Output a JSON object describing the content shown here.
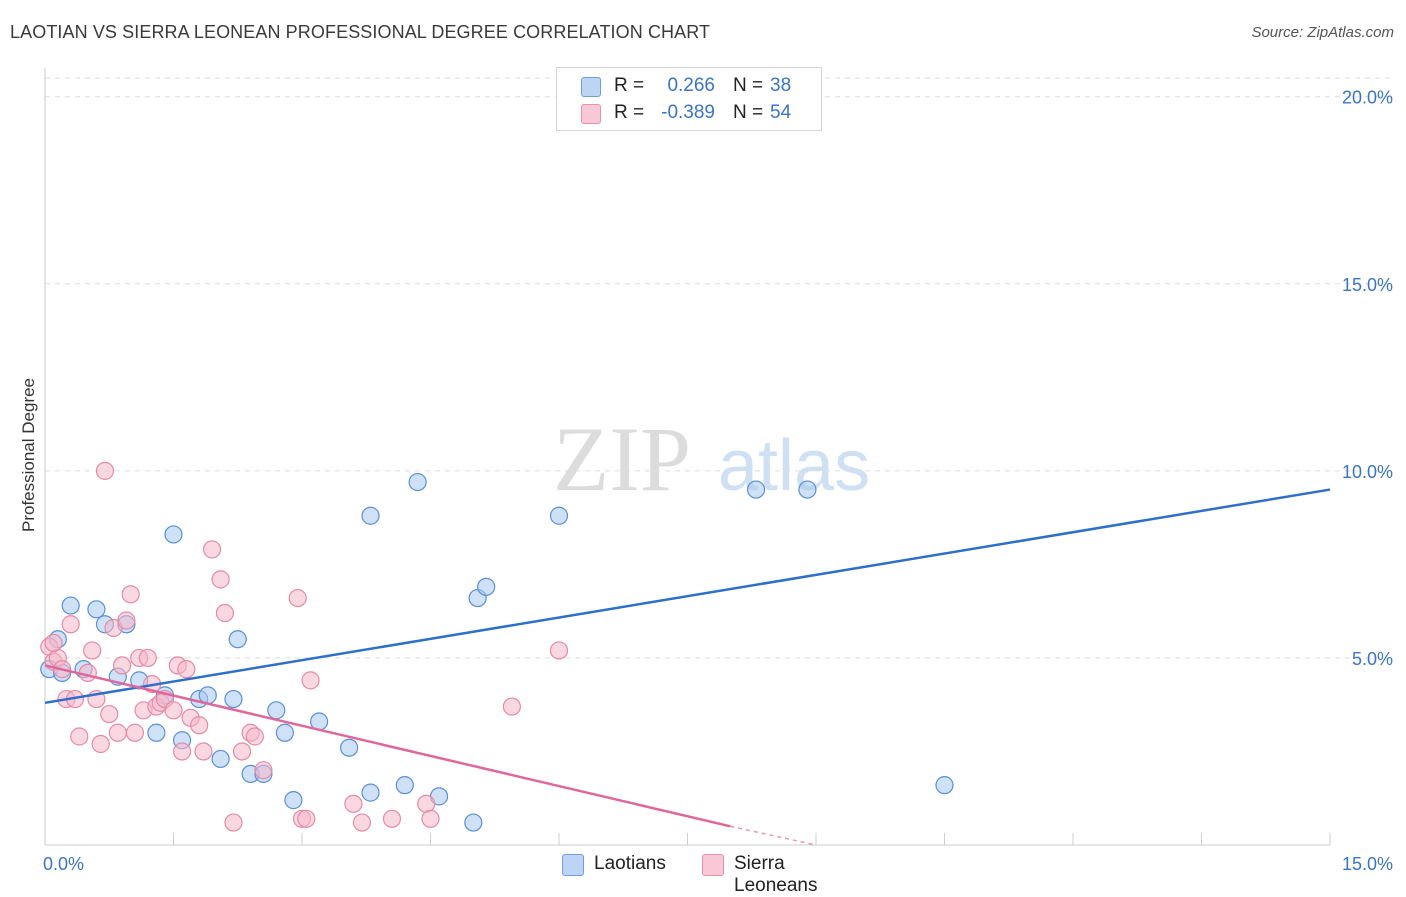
{
  "header": {
    "title": "LAOTIAN VS SIERRA LEONEAN PROFESSIONAL DEGREE CORRELATION CHART",
    "source": "Source: ZipAtlas.com"
  },
  "watermark": {
    "zip": "ZIP",
    "atlas": "atlas"
  },
  "legend": {
    "rows": [
      {
        "r_label": "R =",
        "r_value": "0.266",
        "n_label": "N =",
        "n_value": "38"
      },
      {
        "r_label": "R =",
        "r_value": "-0.389",
        "n_label": "N =",
        "n_value": "54"
      }
    ]
  },
  "bottom_legend": {
    "laotians": "Laotians",
    "sierra": "Sierra Leoneans"
  },
  "colors": {
    "blue_fill": "#a8c8f0",
    "blue_stroke": "#5b8fd6",
    "blue_line": "#2f6fcc",
    "pink_fill": "#f5b8cb",
    "pink_stroke": "#e58aa8",
    "pink_line": "#e0679a",
    "grid": "#dddddd",
    "tick_text": "#3a75c4"
  },
  "chart_data": {
    "type": "scatter",
    "title": "LAOTIAN VS SIERRA LEONEAN PROFESSIONAL DEGREE CORRELATION CHART",
    "xlabel": "",
    "ylabel": "Professional Degree",
    "xlim": [
      0,
      15
    ],
    "ylim": [
      0,
      20.5
    ],
    "x_tick_labels": [
      "0.0%",
      "15.0%"
    ],
    "y_ticks": [
      5,
      10,
      15,
      20
    ],
    "y_tick_labels": [
      "5.0%",
      "10.0%",
      "15.0%",
      "20.0%"
    ],
    "grid": true,
    "series": [
      {
        "name": "Laotians",
        "R": 0.266,
        "N": 38,
        "trend": {
          "x": [
            0,
            15
          ],
          "y": [
            3.8,
            9.5
          ]
        },
        "points": [
          [
            0.05,
            4.7
          ],
          [
            0.15,
            5.5
          ],
          [
            0.2,
            4.6
          ],
          [
            0.3,
            6.4
          ],
          [
            0.45,
            4.7
          ],
          [
            0.6,
            6.3
          ],
          [
            0.7,
            5.9
          ],
          [
            0.85,
            4.5
          ],
          [
            0.95,
            5.9
          ],
          [
            1.1,
            4.4
          ],
          [
            1.3,
            3.0
          ],
          [
            1.4,
            4.0
          ],
          [
            1.5,
            8.3
          ],
          [
            1.6,
            2.8
          ],
          [
            1.8,
            3.9
          ],
          [
            1.9,
            4.0
          ],
          [
            2.05,
            2.3
          ],
          [
            2.2,
            3.9
          ],
          [
            2.25,
            5.5
          ],
          [
            2.4,
            1.9
          ],
          [
            2.55,
            1.9
          ],
          [
            2.7,
            3.6
          ],
          [
            2.8,
            3.0
          ],
          [
            2.9,
            1.2
          ],
          [
            3.2,
            3.3
          ],
          [
            3.55,
            2.6
          ],
          [
            3.8,
            8.8
          ],
          [
            3.8,
            1.4
          ],
          [
            4.2,
            1.6
          ],
          [
            4.35,
            9.7
          ],
          [
            4.6,
            1.3
          ],
          [
            5.0,
            0.6
          ],
          [
            5.05,
            6.6
          ],
          [
            5.15,
            6.9
          ],
          [
            6.0,
            8.8
          ],
          [
            8.3,
            9.5
          ],
          [
            8.9,
            9.5
          ],
          [
            10.5,
            1.6
          ]
        ]
      },
      {
        "name": "Sierra Leoneans",
        "R": -0.389,
        "N": 54,
        "trend": {
          "x": [
            0,
            8.0
          ],
          "y": [
            4.8,
            0.5
          ]
        },
        "trend_dashed": {
          "x": [
            8.0,
            9.0
          ],
          "y": [
            0.5,
            0.0
          ]
        },
        "points": [
          [
            0.05,
            5.3
          ],
          [
            0.1,
            4.9
          ],
          [
            0.15,
            5.0
          ],
          [
            0.2,
            4.7
          ],
          [
            0.25,
            3.9
          ],
          [
            0.3,
            5.9
          ],
          [
            0.35,
            3.9
          ],
          [
            0.4,
            2.9
          ],
          [
            0.5,
            4.6
          ],
          [
            0.55,
            5.2
          ],
          [
            0.6,
            3.9
          ],
          [
            0.65,
            2.7
          ],
          [
            0.7,
            10.0
          ],
          [
            0.75,
            3.5
          ],
          [
            0.8,
            5.8
          ],
          [
            0.85,
            3.0
          ],
          [
            0.9,
            4.8
          ],
          [
            0.95,
            6.0
          ],
          [
            1.0,
            6.7
          ],
          [
            1.05,
            3.0
          ],
          [
            1.1,
            5.0
          ],
          [
            1.15,
            3.6
          ],
          [
            1.2,
            5.0
          ],
          [
            1.25,
            4.3
          ],
          [
            1.3,
            3.7
          ],
          [
            1.35,
            3.8
          ],
          [
            1.4,
            3.9
          ],
          [
            1.5,
            3.6
          ],
          [
            1.55,
            4.8
          ],
          [
            1.6,
            2.5
          ],
          [
            1.65,
            4.7
          ],
          [
            1.7,
            3.4
          ],
          [
            1.8,
            3.2
          ],
          [
            1.85,
            2.5
          ],
          [
            1.95,
            7.9
          ],
          [
            2.05,
            7.1
          ],
          [
            2.1,
            6.2
          ],
          [
            2.2,
            0.6
          ],
          [
            2.3,
            2.5
          ],
          [
            2.4,
            3.0
          ],
          [
            2.45,
            2.9
          ],
          [
            2.55,
            2.0
          ],
          [
            2.95,
            6.6
          ],
          [
            3.0,
            0.7
          ],
          [
            3.05,
            0.7
          ],
          [
            3.1,
            4.4
          ],
          [
            3.6,
            1.1
          ],
          [
            3.7,
            0.6
          ],
          [
            4.05,
            0.7
          ],
          [
            4.45,
            1.1
          ],
          [
            4.5,
            0.7
          ],
          [
            5.45,
            3.7
          ],
          [
            6.0,
            5.2
          ],
          [
            0.1,
            5.4
          ]
        ]
      }
    ]
  }
}
